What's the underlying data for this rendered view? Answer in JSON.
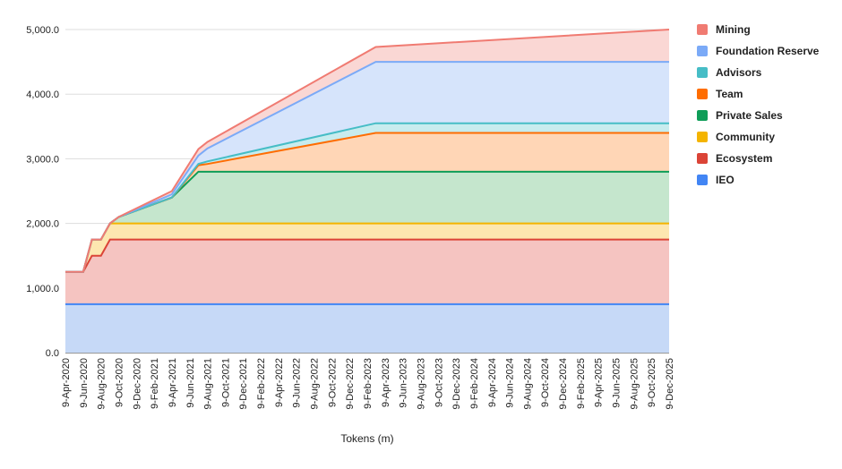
{
  "chart_data": {
    "type": "area",
    "stacked": true,
    "xlabel": "Tokens (m)",
    "ylabel": "",
    "ylim": [
      0,
      5000
    ],
    "y_ticks": [
      "0.0",
      "1,000.0",
      "2,000.0",
      "3,000.0",
      "4,000.0",
      "5,000.0"
    ],
    "grid": true,
    "legend_position": "right",
    "x_tick_labels": [
      "9-Apr-2020",
      "9-Jun-2020",
      "9-Aug-2020",
      "9-Oct-2020",
      "9-Dec-2020",
      "9-Feb-2021",
      "9-Apr-2021",
      "9-Jun-2021",
      "9-Aug-2021",
      "9-Oct-2021",
      "9-Dec-2021",
      "9-Feb-2022",
      "9-Apr-2022",
      "9-Jun-2022",
      "9-Aug-2022",
      "9-Oct-2022",
      "9-Dec-2022",
      "9-Feb-2023",
      "9-Apr-2023",
      "9-Jun-2023",
      "9-Aug-2023",
      "9-Oct-2023",
      "9-Dec-2023",
      "9-Feb-2024",
      "9-Apr-2024",
      "9-Jun-2024",
      "9-Aug-2024",
      "9-Oct-2024",
      "9-Dec-2024",
      "9-Feb-2025",
      "9-Apr-2025",
      "9-Jun-2025",
      "9-Aug-2025",
      "9-Oct-2025",
      "9-Dec-2025"
    ],
    "x": [
      "2020-04-09",
      "2020-05-09",
      "2020-06-09",
      "2020-07-09",
      "2020-08-09",
      "2020-09-09",
      "2020-10-09",
      "2021-04-09",
      "2021-07-09",
      "2021-08-09",
      "2023-03-09",
      "2025-12-09"
    ],
    "series": [
      {
        "name": "IEO",
        "color": "#4285F4",
        "fill": "#c6d9f7",
        "values": [
          750,
          750,
          750,
          750,
          750,
          750,
          750,
          750,
          750,
          750,
          750,
          750
        ]
      },
      {
        "name": "Ecosystem",
        "color": "#DB4437",
        "fill": "#f5c4c1",
        "values": [
          500,
          500,
          500,
          750,
          750,
          1000,
          1000,
          1000,
          1000,
          1000,
          1000,
          1000
        ]
      },
      {
        "name": "Community",
        "color": "#F4B400",
        "fill": "#fde7b0",
        "values": [
          0,
          0,
          0,
          250,
          250,
          250,
          250,
          250,
          250,
          250,
          250,
          250
        ]
      },
      {
        "name": "Private Sales",
        "color": "#0F9D58",
        "fill": "#c5e6cd",
        "values": [
          0,
          0,
          0,
          0,
          0,
          0,
          100,
          400,
          800,
          800,
          800,
          800
        ]
      },
      {
        "name": "Team",
        "color": "#FF6D01",
        "fill": "#ffd6b6",
        "values": [
          0,
          0,
          0,
          0,
          0,
          0,
          0,
          0,
          100,
          120,
          600,
          600
        ]
      },
      {
        "name": "Advisors",
        "color": "#46BDC6",
        "fill": "#c8ecee",
        "values": [
          0,
          0,
          0,
          0,
          0,
          0,
          0,
          0,
          20,
          40,
          150,
          150
        ]
      },
      {
        "name": "Foundation Reserve",
        "color": "#7BAAF7",
        "fill": "#d6e4fb",
        "values": [
          0,
          0,
          0,
          0,
          0,
          0,
          0,
          50,
          130,
          200,
          950,
          950
        ]
      },
      {
        "name": "Mining",
        "color": "#F07B72",
        "fill": "#fad7d4",
        "values": [
          0,
          0,
          0,
          0,
          0,
          0,
          0,
          50,
          100,
          100,
          230,
          500
        ]
      }
    ]
  }
}
